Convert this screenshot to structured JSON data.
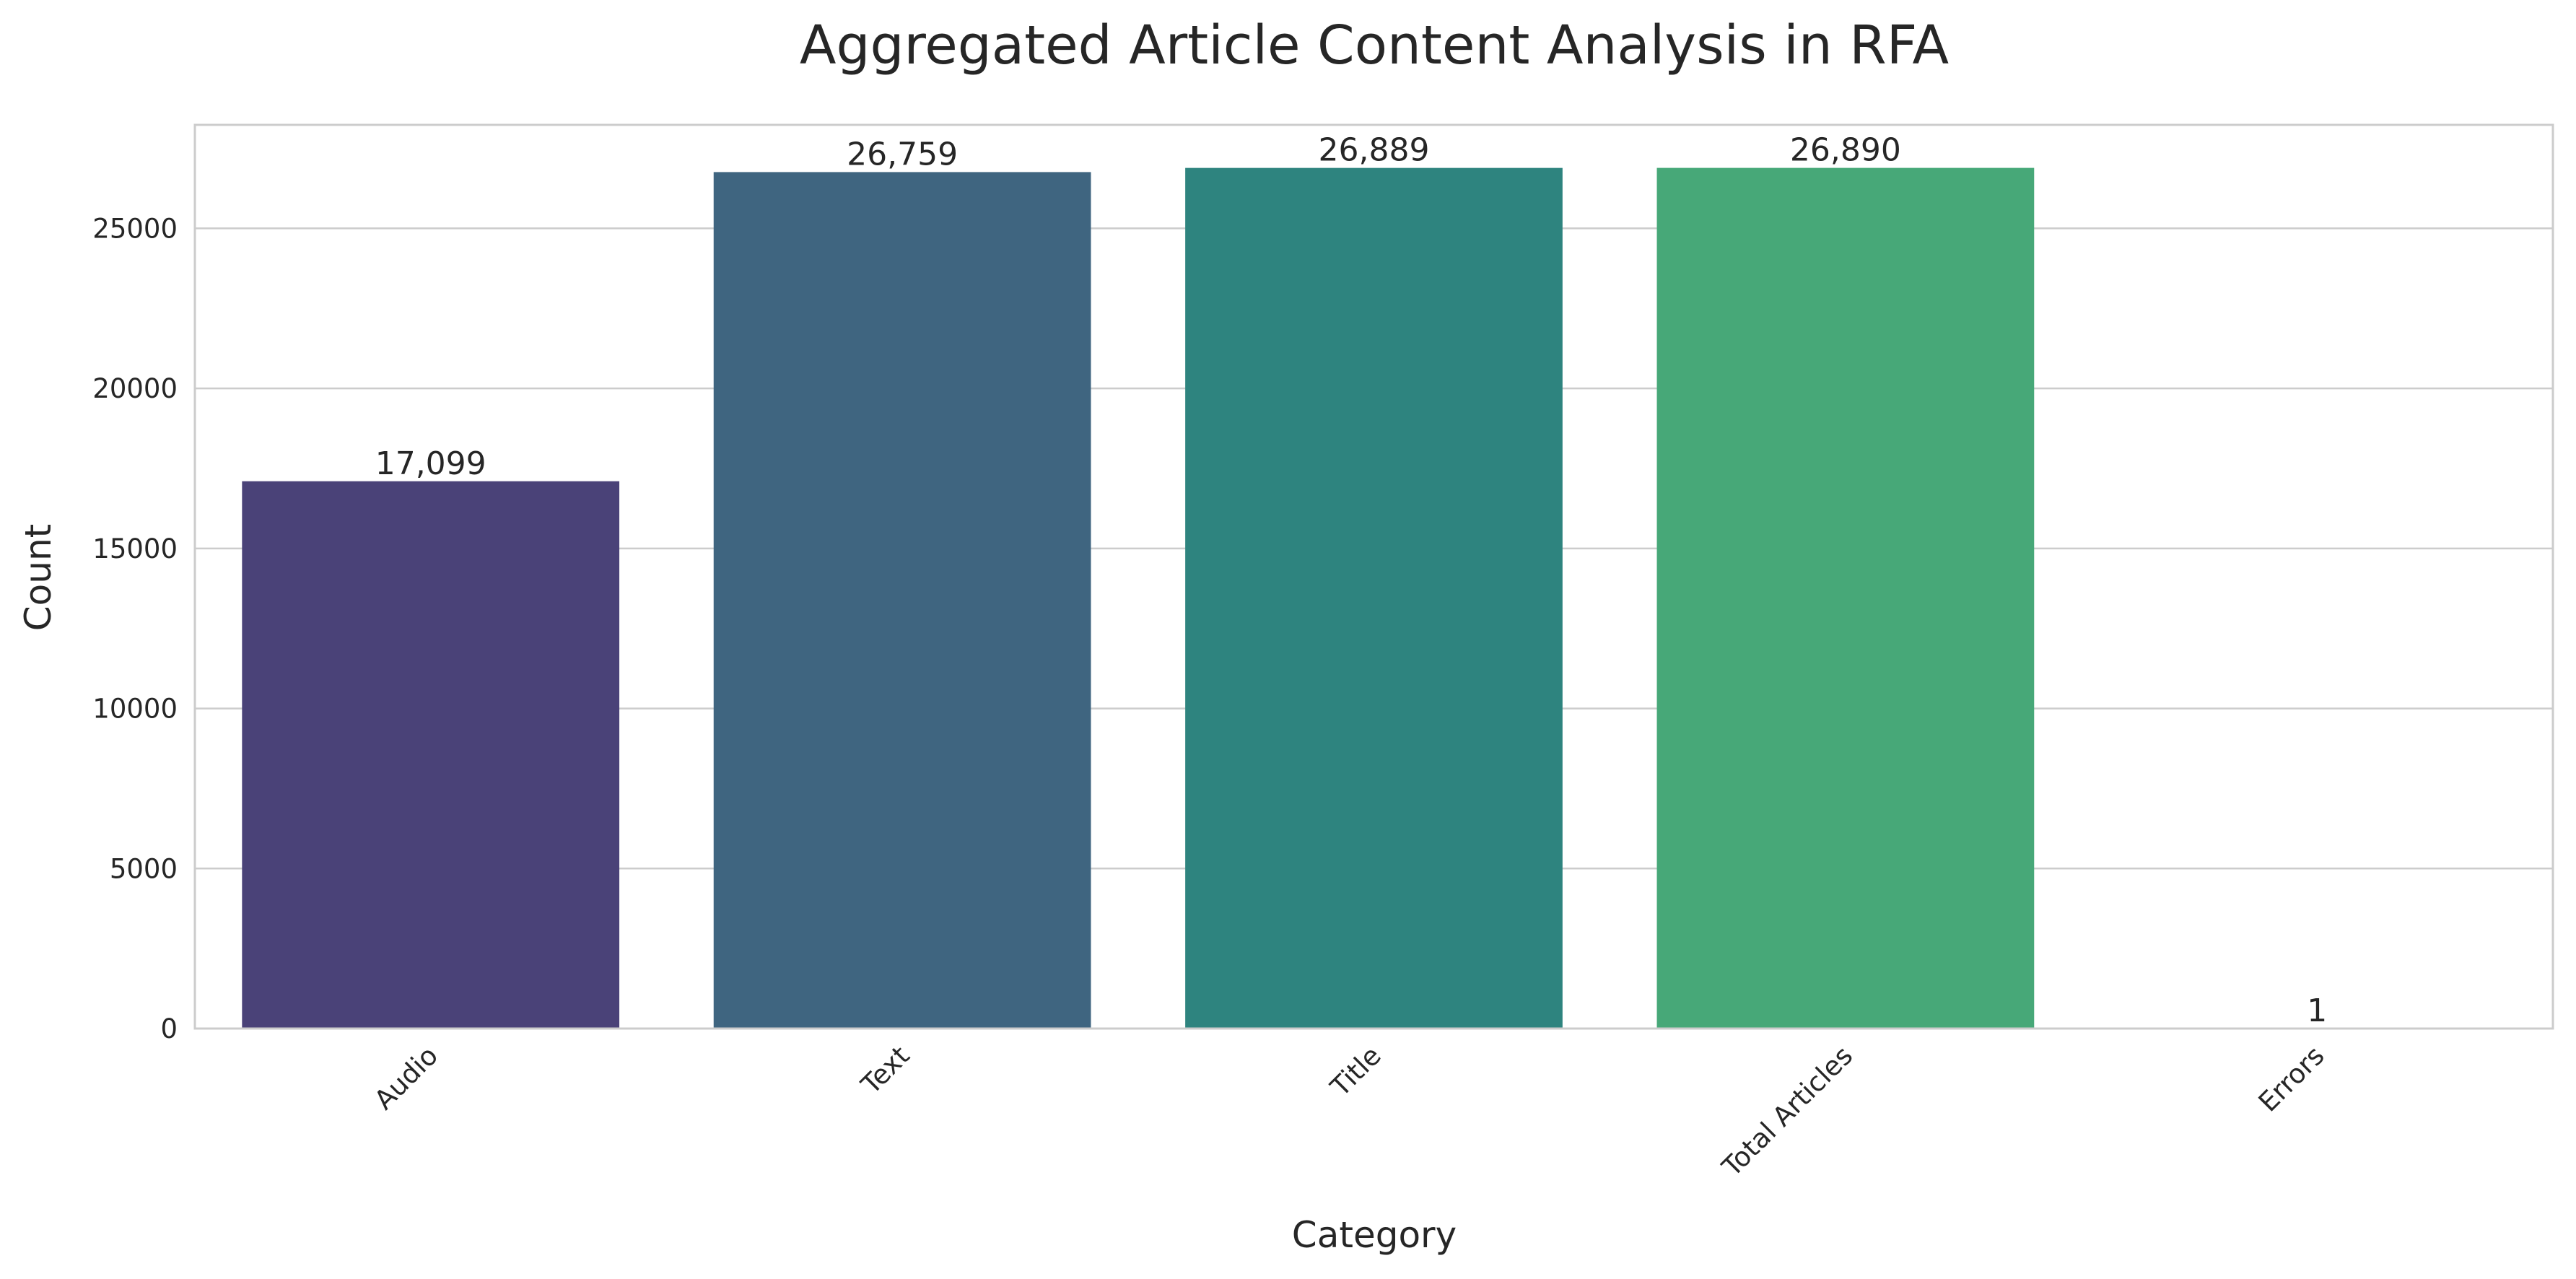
{
  "chart_data": {
    "type": "bar",
    "title": "Aggregated Article Content Analysis in RFA",
    "xlabel": "Category",
    "ylabel": "Count",
    "categories": [
      "Audio",
      "Text",
      "Title",
      "Total Articles",
      "Errors"
    ],
    "values": [
      17099,
      26759,
      26889,
      26890,
      1
    ],
    "value_labels": [
      "17,099",
      "26,759",
      "26,889",
      "26,890",
      "1"
    ],
    "colors": [
      "#4a4278",
      "#3f6580",
      "#2e847f",
      "#47a878",
      "#6cc06a"
    ],
    "yticks": [
      0,
      5000,
      10000,
      15000,
      20000,
      25000
    ],
    "ytick_labels": [
      "0",
      "5000",
      "10000",
      "15000",
      "20000",
      "25000"
    ],
    "ylim": [
      0,
      28234
    ],
    "grid": true
  }
}
